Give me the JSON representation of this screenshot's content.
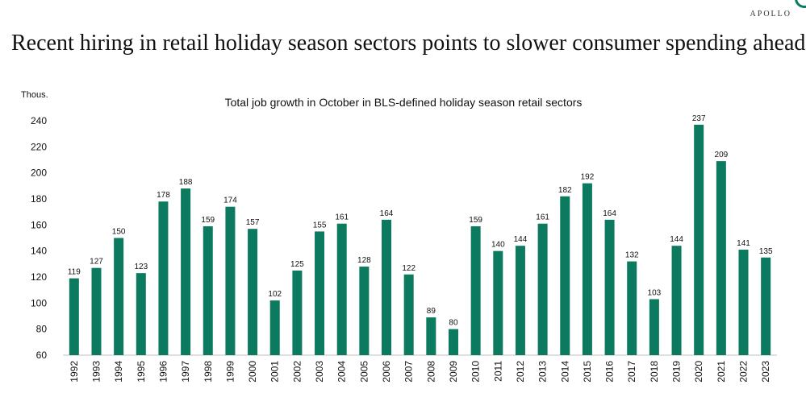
{
  "brand": "APOLLO",
  "headline": "Recent hiring in retail holiday season sectors points to slower consumer spending ahead",
  "colors": {
    "bar": "#0b7a5e",
    "text": "#111111",
    "axis": "#bfbfbf"
  },
  "chart_data": {
    "type": "bar",
    "title": "Total job growth in October in BLS-defined holiday season retail sectors",
    "ylabel": "Thous.",
    "xlabel": "",
    "ylim": [
      60,
      240
    ],
    "yticks": [
      60,
      80,
      100,
      120,
      140,
      160,
      180,
      200,
      220,
      240
    ],
    "grid": false,
    "data_labels": true,
    "categories": [
      "1992",
      "1993",
      "1994",
      "1995",
      "1996",
      "1997",
      "1998",
      "1999",
      "2000",
      "2001",
      "2002",
      "2003",
      "2004",
      "2005",
      "2006",
      "2007",
      "2008",
      "2009",
      "2010",
      "2011",
      "2012",
      "2013",
      "2014",
      "2015",
      "2016",
      "2017",
      "2018",
      "2019",
      "2020",
      "2021",
      "2022",
      "2023"
    ],
    "values": [
      119,
      127,
      150,
      123,
      178,
      188,
      159,
      174,
      157,
      102,
      125,
      155,
      161,
      128,
      164,
      122,
      89,
      80,
      159,
      140,
      144,
      161,
      182,
      192,
      164,
      132,
      103,
      144,
      237,
      209,
      141,
      135
    ]
  }
}
